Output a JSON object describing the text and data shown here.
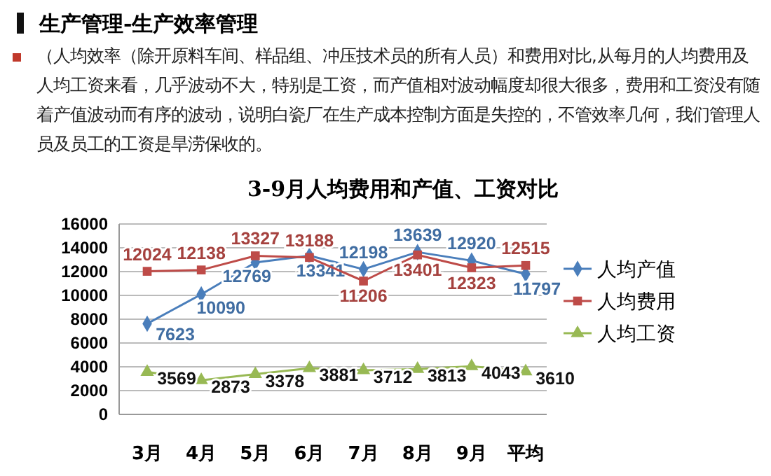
{
  "chart_data": {
    "type": "line",
    "title": "3-9月人均费用和产值、工资对比",
    "annotations": [
      "生产管理-生产效率管理",
      "（人均效率（除开原料车间、样品组、冲压技术员的所有人员）和费用对比,从每月的人均费用及人均工资来看，几乎波动不大，特别是工资，而产值相对波动幅度却很大很多，费用和工资没有随着产值波动而有序的波动，说明白瓷厂在生产成本控制方面是失控的，不管效率几何，我们管理人员及员工的工资是旱涝保收的。"
    ],
    "categories": [
      "3月",
      "4月",
      "5月",
      "6月",
      "7月",
      "8月",
      "9月",
      "平均"
    ],
    "series": [
      {
        "name": "人均产值",
        "color": "#4a7ebb",
        "marker": "diamond",
        "values": [
          7623,
          10090,
          12769,
          13341,
          12198,
          13639,
          12920,
          11797
        ]
      },
      {
        "name": "人均费用",
        "color": "#be4b48",
        "marker": "square",
        "values": [
          12024,
          12138,
          13327,
          13188,
          11206,
          13401,
          12323,
          12515
        ]
      },
      {
        "name": "人均工资",
        "color": "#98b954",
        "marker": "triangle",
        "values": [
          3569,
          2873,
          3378,
          3881,
          3712,
          3813,
          4043,
          3610
        ]
      }
    ],
    "ylim": [
      0,
      16000
    ],
    "yticks": [
      0,
      2000,
      4000,
      6000,
      8000,
      10000,
      12000,
      14000,
      16000
    ],
    "grid": "y",
    "legend": "right",
    "data_labels": true
  }
}
